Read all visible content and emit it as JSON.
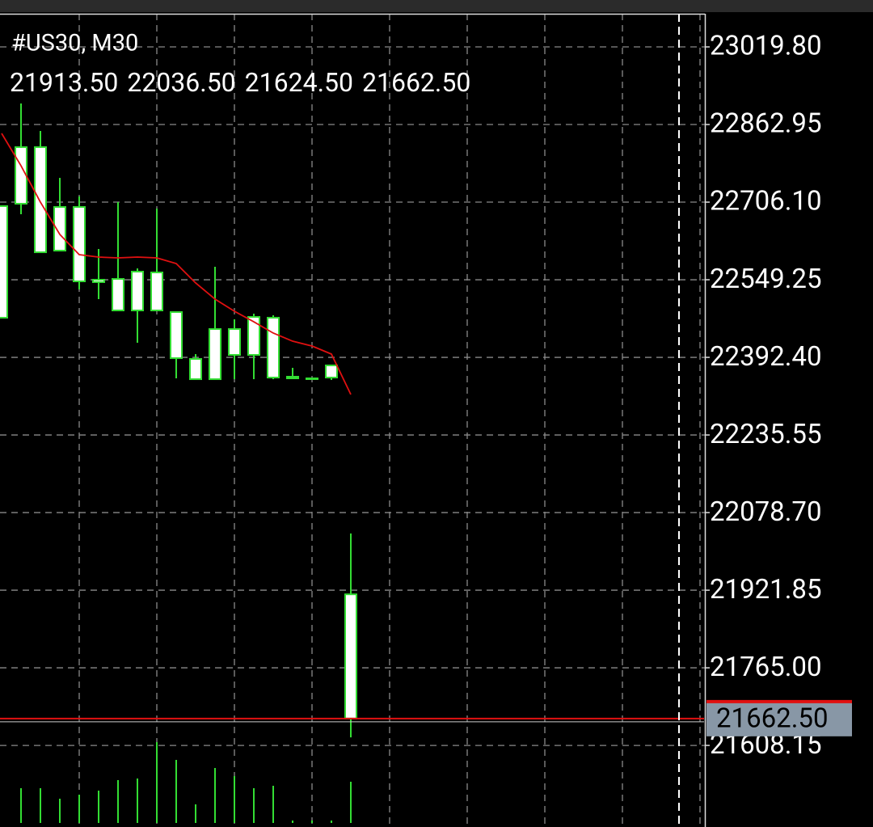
{
  "chart_data": {
    "type": "candlestick",
    "title": "#US30, M30",
    "last_ohlc_labels": [
      "21913.50",
      "22036.50",
      "21624.50",
      "21662.50"
    ],
    "categories": [
      null,
      null,
      null,
      null,
      null,
      null,
      null,
      null,
      null,
      null,
      null,
      null,
      null,
      null,
      null,
      null,
      null,
      null,
      null
    ],
    "open": [
      22698.0,
      22702.9,
      22817.2,
      22608.1,
      22696.3,
      22549.3,
      22550.9,
      22487.2,
      22564.0,
      22483.9,
      22389.2,
      22348.3,
      22449.6,
      22397.4,
      22472.5,
      22353.3,
      22350.0,
      22351.6,
      21913.5
    ],
    "high": [
      22698.0,
      22905.4,
      22849.9,
      22755.1,
      22717.6,
      22611.4,
      22706.1,
      22572.2,
      22693.1,
      22483.9,
      22399.0,
      22575.4,
      22469.2,
      22480.7,
      22477.4,
      22371.2,
      22350.0,
      22376.1,
      22036.5
    ],
    "low": [
      22472.5,
      22681.6,
      22604.8,
      22608.1,
      22529.7,
      22510.1,
      22487.2,
      22421.9,
      22487.2,
      22350.0,
      22348.3,
      22348.3,
      22348.3,
      22348.3,
      22348.3,
      22350.0,
      22350.0,
      22346.7,
      21624.5
    ],
    "close": [
      22472.5,
      22817.2,
      22604.8,
      22696.3,
      22546.0,
      22544.4,
      22487.2,
      22565.6,
      22487.2,
      22390.8,
      22348.3,
      22449.6,
      22397.4,
      22474.1,
      22351.6,
      22350.0,
      22350.0,
      22376.1,
      21662.5
    ],
    "ma": [
      22845.0,
      22779.6,
      22706.1,
      22640.8,
      22600.0,
      22595.0,
      22593.4,
      22595.0,
      22593.4,
      22582.0,
      22542.8,
      22510.1,
      22485.6,
      22464.3,
      22441.5,
      22425.1,
      22415.3,
      22399.0,
      22317.3
    ],
    "volume": [
      null,
      43,
      43,
      30,
      35,
      40,
      53,
      55,
      100,
      78,
      23,
      68,
      58,
      43,
      46,
      3,
      3,
      3,
      51
    ],
    "volume_lim": [
      0,
      120
    ],
    "color": "#33dd33",
    "body_color": "#ffffff",
    "ma_color": "#e01010",
    "bid": {
      "value": 21662.5,
      "label": "21662.50"
    },
    "bid_color": "#e01010",
    "ylim": [
      21448.2,
      23086.8
    ],
    "yticks": [
      {
        "value": 23019.8,
        "label": "23019.80"
      },
      22862.95,
      {
        "value": 22706.1,
        "label": "22706.10"
      },
      22549.25,
      {
        "value": 22392.4,
        "label": "22392.40"
      },
      22235.55,
      {
        "value": 22078.7,
        "label": "22078.70"
      },
      21921.85,
      {
        "value": 21765,
        "label": "21765.00"
      },
      21608.15
    ],
    "grid": true
  }
}
